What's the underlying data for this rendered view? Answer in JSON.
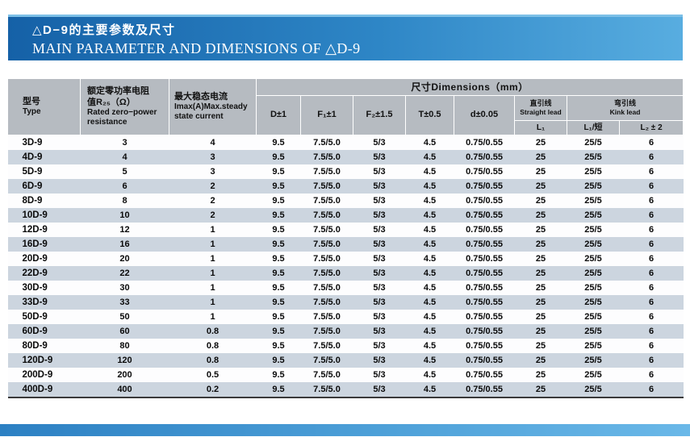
{
  "page": {
    "title_zh": "△D−9的主要参数及尺寸",
    "title_en": "MAIN PARAMETER AND DIMENSIONS OF △D-9"
  },
  "colors": {
    "band_blue_dark": "#1561a7",
    "band_blue_light": "#58ade0",
    "header_gray": "#b6bbc1",
    "row_alt_blue": "#ccd5df"
  },
  "table": {
    "dimensions_header": "尺寸Dimensions（mm）",
    "columns": {
      "type_zh": "型号",
      "type_en": "Type",
      "res_line1": "额定零功率电阻",
      "res_line2": "值R₂₅（Ω）",
      "res_line3": "Rated zero−power",
      "res_line4": "resistance",
      "imax_line1": "最大稳态电流",
      "imax_line2": "Imax(A)Max.steady",
      "imax_line3": "state current",
      "d": "D±1",
      "f1": "F₁±1",
      "f2": "F₂±1.5",
      "t": "T±0.5",
      "dd": "d±0.05",
      "straight_zh": "直引线",
      "straight_en": "Straight lead",
      "kink_zh": "弯引线",
      "kink_en": "Kink lead",
      "l1": "L₁",
      "l1_short": "L₁/短",
      "l2": "L₂ ± 2"
    },
    "rows": [
      [
        "3D-9",
        "3",
        "4",
        "9.5",
        "7.5/5.0",
        "5/3",
        "4.5",
        "0.75/0.55",
        "25",
        "25/5",
        "6"
      ],
      [
        "4D-9",
        "4",
        "3",
        "9.5",
        "7.5/5.0",
        "5/3",
        "4.5",
        "0.75/0.55",
        "25",
        "25/5",
        "6"
      ],
      [
        "5D-9",
        "5",
        "3",
        "9.5",
        "7.5/5.0",
        "5/3",
        "4.5",
        "0.75/0.55",
        "25",
        "25/5",
        "6"
      ],
      [
        "6D-9",
        "6",
        "2",
        "9.5",
        "7.5/5.0",
        "5/3",
        "4.5",
        "0.75/0.55",
        "25",
        "25/5",
        "6"
      ],
      [
        "8D-9",
        "8",
        "2",
        "9.5",
        "7.5/5.0",
        "5/3",
        "4.5",
        "0.75/0.55",
        "25",
        "25/5",
        "6"
      ],
      [
        "10D-9",
        "10",
        "2",
        "9.5",
        "7.5/5.0",
        "5/3",
        "4.5",
        "0.75/0.55",
        "25",
        "25/5",
        "6"
      ],
      [
        "12D-9",
        "12",
        "1",
        "9.5",
        "7.5/5.0",
        "5/3",
        "4.5",
        "0.75/0.55",
        "25",
        "25/5",
        "6"
      ],
      [
        "16D-9",
        "16",
        "1",
        "9.5",
        "7.5/5.0",
        "5/3",
        "4.5",
        "0.75/0.55",
        "25",
        "25/5",
        "6"
      ],
      [
        "20D-9",
        "20",
        "1",
        "9.5",
        "7.5/5.0",
        "5/3",
        "4.5",
        "0.75/0.55",
        "25",
        "25/5",
        "6"
      ],
      [
        "22D-9",
        "22",
        "1",
        "9.5",
        "7.5/5.0",
        "5/3",
        "4.5",
        "0.75/0.55",
        "25",
        "25/5",
        "6"
      ],
      [
        "30D-9",
        "30",
        "1",
        "9.5",
        "7.5/5.0",
        "5/3",
        "4.5",
        "0.75/0.55",
        "25",
        "25/5",
        "6"
      ],
      [
        "33D-9",
        "33",
        "1",
        "9.5",
        "7.5/5.0",
        "5/3",
        "4.5",
        "0.75/0.55",
        "25",
        "25/5",
        "6"
      ],
      [
        "50D-9",
        "50",
        "1",
        "9.5",
        "7.5/5.0",
        "5/3",
        "4.5",
        "0.75/0.55",
        "25",
        "25/5",
        "6"
      ],
      [
        "60D-9",
        "60",
        "0.8",
        "9.5",
        "7.5/5.0",
        "5/3",
        "4.5",
        "0.75/0.55",
        "25",
        "25/5",
        "6"
      ],
      [
        "80D-9",
        "80",
        "0.8",
        "9.5",
        "7.5/5.0",
        "5/3",
        "4.5",
        "0.75/0.55",
        "25",
        "25/5",
        "6"
      ],
      [
        "120D-9",
        "120",
        "0.8",
        "9.5",
        "7.5/5.0",
        "5/3",
        "4.5",
        "0.75/0.55",
        "25",
        "25/5",
        "6"
      ],
      [
        "200D-9",
        "200",
        "0.5",
        "9.5",
        "7.5/5.0",
        "5/3",
        "4.5",
        "0.75/0.55",
        "25",
        "25/5",
        "6"
      ],
      [
        "400D-9",
        "400",
        "0.2",
        "9.5",
        "7.5/5.0",
        "5/3",
        "4.5",
        "0.75/0.55",
        "25",
        "25/5",
        "6"
      ]
    ]
  }
}
